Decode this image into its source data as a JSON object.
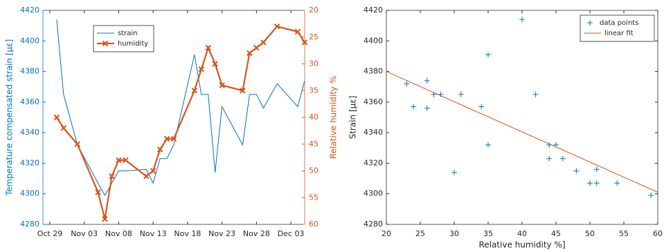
{
  "chart_data": [
    {
      "type": "line",
      "x": [
        "Oct 30",
        "Oct 31",
        "Nov 02",
        "Nov 05",
        "Nov 06",
        "Nov 07",
        "Nov 08",
        "Nov 09",
        "Nov 12",
        "Nov 13",
        "Nov 14",
        "Nov 15",
        "Nov 16",
        "Nov 19",
        "Nov 20",
        "Nov 21",
        "Nov 22",
        "Nov 23",
        "Nov 26",
        "Nov 27",
        "Nov 28",
        "Nov 29",
        "Dec 01",
        "Dec 04",
        "Dec 05"
      ],
      "xlim": [
        "Oct 28",
        "Dec 05"
      ],
      "xticks": [
        "Oct 29",
        "Nov 03",
        "Nov 08",
        "Nov 13",
        "Nov 18",
        "Nov 23",
        "Nov 28",
        "Dec 03"
      ],
      "ylim": [
        4280,
        4420
      ],
      "yticks": [
        4280,
        4300,
        4320,
        4340,
        4360,
        4380,
        4400,
        4420
      ],
      "y2lim": [
        60,
        20
      ],
      "y2ticks": [
        20,
        25,
        30,
        35,
        40,
        45,
        50,
        55,
        60
      ],
      "ylabel": "Temperature compensated strain [με]",
      "y2label": "Relative humidity %",
      "legend": "upper left",
      "series": [
        {
          "name": "strain",
          "color": "#0072bd",
          "axis": "y",
          "values": [
            4414,
            4365,
            4332,
            4307,
            4299,
            4307,
            4315,
            4315,
            4316,
            4307,
            4323,
            4323,
            4332,
            4391,
            4365,
            4365,
            4314,
            4357,
            4332,
            4365,
            4365,
            4356,
            4372,
            4357,
            4374
          ]
        },
        {
          "name": "humidity",
          "color": "#d95319",
          "axis": "y2",
          "marker": "x",
          "values": [
            40,
            42,
            45,
            54,
            59,
            51,
            48,
            48,
            51,
            50,
            46,
            44,
            44,
            35,
            31,
            27,
            30,
            34,
            35,
            28,
            27,
            26,
            23,
            24,
            26
          ]
        }
      ]
    },
    {
      "type": "scatter",
      "xlim": [
        20,
        60
      ],
      "xticks": [
        20,
        25,
        30,
        35,
        40,
        45,
        50,
        55,
        60
      ],
      "ylim": [
        4280,
        4420
      ],
      "yticks": [
        4280,
        4300,
        4320,
        4340,
        4360,
        4380,
        4400,
        4420
      ],
      "xlabel": "Relative humidity %]",
      "ylabel": "Strain [με]",
      "legend": "upper right",
      "series": [
        {
          "name": "data points",
          "color": "#0072bd",
          "type": "scatter",
          "marker": "+",
          "x": [
            23,
            24,
            26,
            26,
            27,
            28,
            30,
            31,
            34,
            35,
            35,
            40,
            42,
            44,
            44,
            45,
            46,
            48,
            50,
            51,
            51,
            54,
            59
          ],
          "values": [
            4372,
            4357,
            4374,
            4356,
            4365,
            4365,
            4314,
            4365,
            4357,
            4391,
            4332,
            4414,
            4365,
            4332,
            4323,
            4332,
            4323,
            4315,
            4307,
            4307,
            4316,
            4307,
            4299
          ]
        },
        {
          "name": "linear fit",
          "color": "#d95319",
          "type": "line",
          "x": [
            20,
            60
          ],
          "values": [
            4380,
            4301
          ]
        }
      ]
    }
  ]
}
